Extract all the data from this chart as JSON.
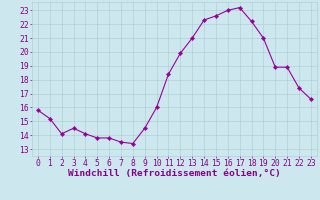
{
  "x": [
    0,
    1,
    2,
    3,
    4,
    5,
    6,
    7,
    8,
    9,
    10,
    11,
    12,
    13,
    14,
    15,
    16,
    17,
    18,
    19,
    20,
    21,
    22,
    23
  ],
  "y": [
    15.8,
    15.2,
    14.1,
    14.5,
    14.1,
    13.8,
    13.8,
    13.5,
    13.4,
    14.5,
    16.0,
    18.4,
    19.9,
    21.0,
    22.3,
    22.6,
    23.0,
    23.2,
    22.2,
    21.0,
    18.9,
    18.9,
    17.4,
    16.6
  ],
  "line_color": "#990099",
  "marker": "D",
  "marker_size": 2.2,
  "bg_color": "#cce8ee",
  "grid_color": "#aacccc",
  "ylabel_ticks": [
    13,
    14,
    15,
    16,
    17,
    18,
    19,
    20,
    21,
    22,
    23
  ],
  "xlabel": "Windchill (Refroidissement éolien,°C)",
  "xlim": [
    -0.5,
    23.5
  ],
  "ylim": [
    12.5,
    23.6
  ],
  "tick_color": "#880088",
  "label_color": "#880088",
  "tick_fontsize": 5.8,
  "xlabel_fontsize": 6.8
}
